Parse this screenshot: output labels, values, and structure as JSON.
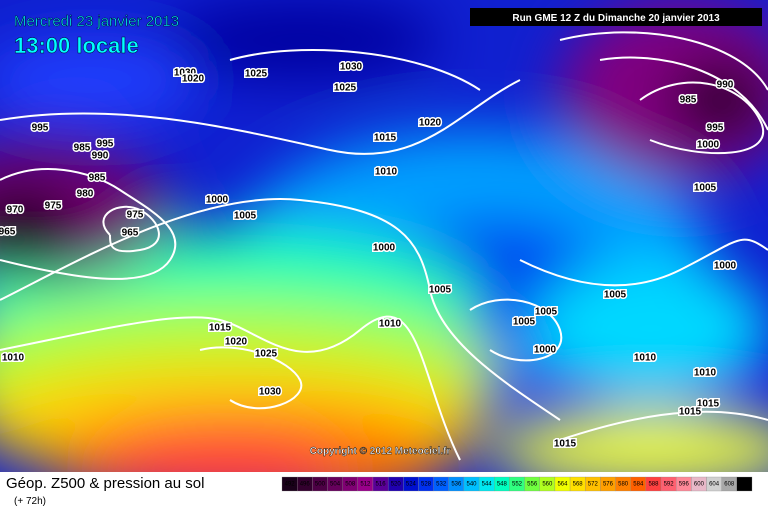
{
  "header": {
    "date": "Mercredi 23 janvier 2013",
    "time": "13:00 locale",
    "run": "Run GME 12 Z du Dimanche 20 janvier 2013"
  },
  "copyright": "Copyright © 2012 Meteociel.fr",
  "legend": {
    "title": "Géop. Z500 & pression au sol",
    "subtitle": "(+ 72h)",
    "scale": [
      492,
      496,
      500,
      504,
      508,
      512,
      516,
      520,
      524,
      528,
      532,
      536,
      540,
      544,
      548,
      552,
      556,
      560,
      564,
      568,
      572,
      576,
      580,
      584,
      588,
      592,
      596,
      600,
      604,
      608,
      612
    ],
    "colors": [
      "#1a001a",
      "#33002e",
      "#4d0045",
      "#66005c",
      "#800073",
      "#99008a",
      "#5a0098",
      "#2000b0",
      "#0010d0",
      "#0030f0",
      "#0060ff",
      "#0090ff",
      "#00c0ff",
      "#00e8f0",
      "#00ffc0",
      "#30ff80",
      "#70ff40",
      "#b0ff20",
      "#f0ff00",
      "#ffe000",
      "#ffc000",
      "#ffa000",
      "#ff8000",
      "#ff6000",
      "#ff4040",
      "#ff6070",
      "#ff8898",
      "#e8b8c8",
      "#d0d0d0",
      "#a8a8a8",
      "#000000"
    ]
  },
  "isobar_labels": [
    1030,
    1020,
    1025,
    1030,
    1025,
    1020,
    1015,
    995,
    995,
    990,
    985,
    985,
    980,
    975,
    970,
    965,
    975,
    965,
    1010,
    1000,
    1005,
    1000,
    1005,
    1010,
    1015,
    1020,
    1025,
    1030,
    1010,
    1005,
    1005,
    1005,
    1000,
    1010,
    1010,
    1015,
    1015,
    1015,
    1000,
    1005,
    1000,
    995,
    985,
    990
  ]
}
